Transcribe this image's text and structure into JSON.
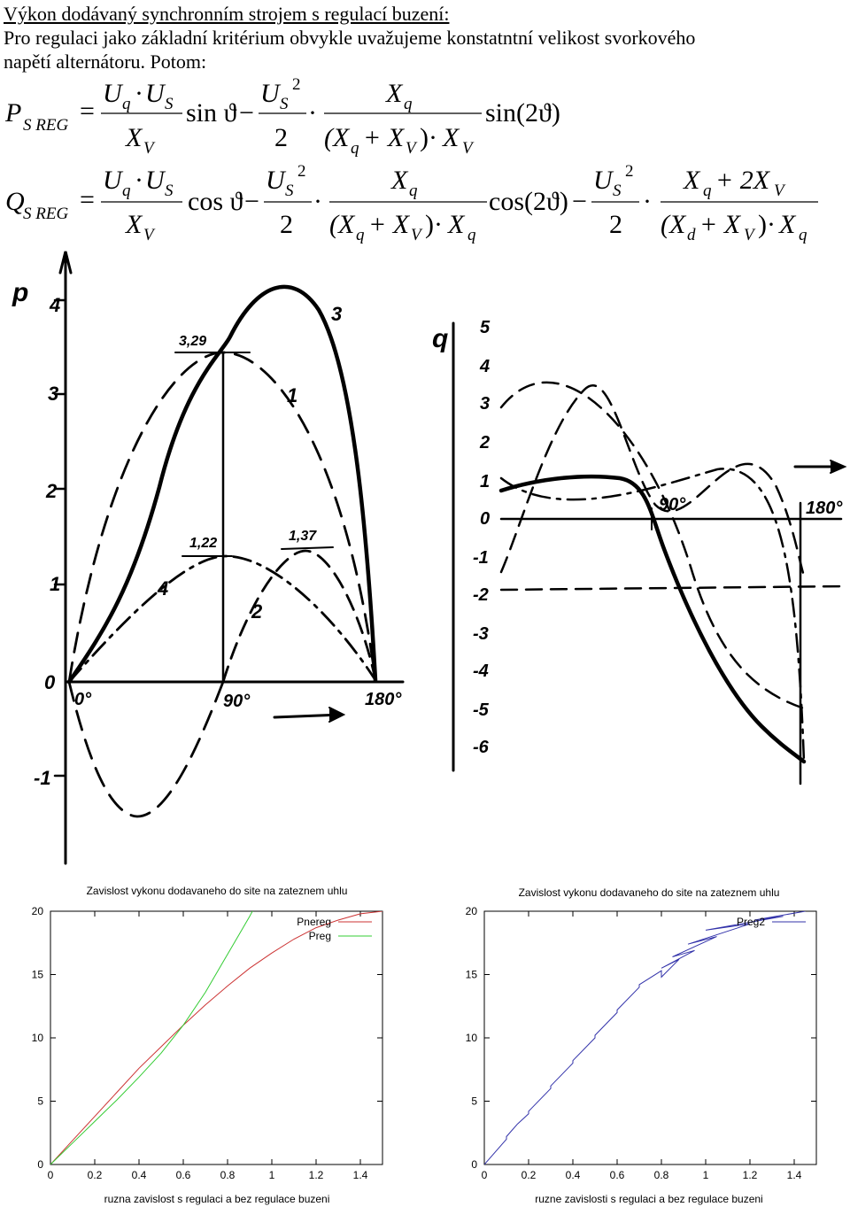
{
  "heading": {
    "title": "Výkon dodávaný synchronním strojem s regulací buzení:",
    "line1": "Pro regulaci jako základní kritérium obvykle uvažujeme konstatntní velikost svorkového",
    "line2": "napětí alternátoru. Potom:"
  },
  "formula_p": {
    "lhs": "P",
    "lhs_sub": "S REG",
    "eq": "=",
    "t1_num_a": "U",
    "t1_num_a_sub": "q",
    "dot": "·",
    "t1_num_b": "U",
    "t1_num_b_sub": "S",
    "t1_den": "X",
    "t1_den_sub": "V",
    "t1_fn": "sin ϑ",
    "minus": "−",
    "t2_num": "U",
    "t2_num_sub": "S",
    "t2_num_sup": "2",
    "t2_den": "2",
    "t3_num": "X",
    "t3_num_sub": "q",
    "t3_den_a": "(X",
    "t3_den_a_sub": "q",
    "t3_den_plus": "+ X",
    "t3_den_b_sub": "V",
    "t3_den_close": ")",
    "t3_den_c": "X",
    "t3_den_c_sub": "V",
    "t3_fn": "sin(2ϑ)"
  },
  "formula_q": {
    "lhs": "Q",
    "lhs_sub": "S REG",
    "eq": "=",
    "t1_num_a": "U",
    "t1_num_a_sub": "q",
    "dot": "·",
    "t1_num_b": "U",
    "t1_num_b_sub": "S",
    "t1_den": "X",
    "t1_den_sub": "V",
    "t1_fn": "cos ϑ",
    "minus": "−",
    "t2_num": "U",
    "t2_num_sub": "S",
    "t2_num_sup": "2",
    "t2_den": "2",
    "t3_num": "X",
    "t3_num_sub": "q",
    "t3_den_a": "(X",
    "t3_den_a_sub": "q",
    "t3_den_plus": "+ X",
    "t3_den_b_sub": "V",
    "t3_den_close": ")",
    "t3_den_c": "X",
    "t3_den_c_sub": "q",
    "t3_fn": "cos(2ϑ)",
    "t4_num": "U",
    "t4_num_sub": "S",
    "t4_num_sup": "2",
    "t4_den": "2",
    "t5_num_a": "X",
    "t5_num_a_sub": "q",
    "t5_num_plus": "+ 2X",
    "t5_num_b_sub": "V",
    "t5_den_a": "(X",
    "t5_den_a_sub": "d",
    "t5_den_plus": "+ X",
    "t5_den_b_sub": "V",
    "t5_den_close": ")",
    "t5_den_c": "X",
    "t5_den_c_sub": "q"
  },
  "sketch_p": {
    "axis_label": "p",
    "y_ticks": [
      "4",
      "3",
      "2",
      "1",
      "0",
      "-1"
    ],
    "x_ticks": [
      "0°",
      "90°",
      "180°"
    ],
    "curve_labels": [
      "1",
      "2",
      "3",
      "4"
    ],
    "annotations": [
      "3,29",
      "1,22",
      "1,37"
    ]
  },
  "sketch_q": {
    "axis_label": "q",
    "y_ticks": [
      "5",
      "4",
      "3",
      "2",
      "1",
      "0",
      "-1",
      "-2",
      "-3",
      "-4",
      "-5",
      "-6"
    ],
    "x_ticks": [
      "90°",
      "180°"
    ]
  },
  "chart_data": [
    {
      "type": "line",
      "title": "Zavislost vykonu dodavaneho do site na zateznem uhlu",
      "xlabel": "ruzna zavislost s regulaci a bez regulace buzeni",
      "ylabel": "",
      "xlim": [
        0,
        1.5
      ],
      "ylim": [
        0,
        20
      ],
      "x_ticks": [
        "0",
        "0.2",
        "0.4",
        "0.6",
        "0.8",
        "1",
        "1.2",
        "1.4"
      ],
      "y_ticks": [
        "0",
        "5",
        "10",
        "15",
        "20"
      ],
      "legend_position": "top-right",
      "series": [
        {
          "name": "Pnereg",
          "color": "#cc3333",
          "x": [
            0,
            0.1,
            0.2,
            0.3,
            0.4,
            0.5,
            0.6,
            0.7,
            0.8,
            0.9,
            1.0,
            1.1,
            1.2,
            1.3,
            1.4,
            1.5
          ],
          "y": [
            0,
            1.9,
            3.8,
            5.7,
            7.6,
            9.3,
            11.0,
            12.6,
            14.1,
            15.5,
            16.7,
            17.8,
            18.7,
            19.3,
            19.8,
            20.0
          ]
        },
        {
          "name": "Preg",
          "color": "#33cc33",
          "x": [
            0,
            0.1,
            0.2,
            0.3,
            0.4,
            0.5,
            0.6,
            0.7,
            0.8,
            0.85,
            0.9,
            0.95,
            0.98
          ],
          "y": [
            0,
            1.7,
            3.4,
            5.1,
            6.9,
            8.8,
            11.0,
            13.6,
            16.6,
            18.1,
            19.6,
            21.2,
            22.5
          ]
        }
      ]
    },
    {
      "type": "line",
      "title": "Zavislost vykonu dodavaneho do site na zateznem uhlu",
      "xlabel": "ruzne zavislosti s regulaci a bez regulace buzeni",
      "ylabel": "",
      "xlim": [
        0,
        1.5
      ],
      "ylim": [
        0,
        20
      ],
      "x_ticks": [
        "0",
        "0.2",
        "0.4",
        "0.6",
        "0.8",
        "1",
        "1.2",
        "1.4"
      ],
      "y_ticks": [
        "0",
        "5",
        "10",
        "15",
        "20"
      ],
      "legend_position": "top-right",
      "series": [
        {
          "name": "Preg2",
          "color": "#3333aa",
          "x": [
            0,
            0.1,
            0.1,
            0.15,
            0.2,
            0.2,
            0.3,
            0.3,
            0.4,
            0.4,
            0.5,
            0.5,
            0.6,
            0.6,
            0.7,
            0.7,
            0.8,
            0.8,
            0.88,
            0.8,
            0.95,
            0.85,
            1.05,
            0.92,
            1.2,
            1.0,
            1.35,
            1.22,
            1.45
          ],
          "y": [
            0,
            2,
            2.2,
            3.2,
            4,
            4.2,
            6,
            6.2,
            8,
            8.2,
            10,
            10.2,
            12,
            12.2,
            14,
            14.2,
            15.3,
            14.8,
            16.2,
            15.5,
            16.9,
            16.4,
            18.0,
            17.4,
            19.0,
            18.5,
            19.6,
            19.3,
            20.0
          ]
        }
      ]
    }
  ]
}
